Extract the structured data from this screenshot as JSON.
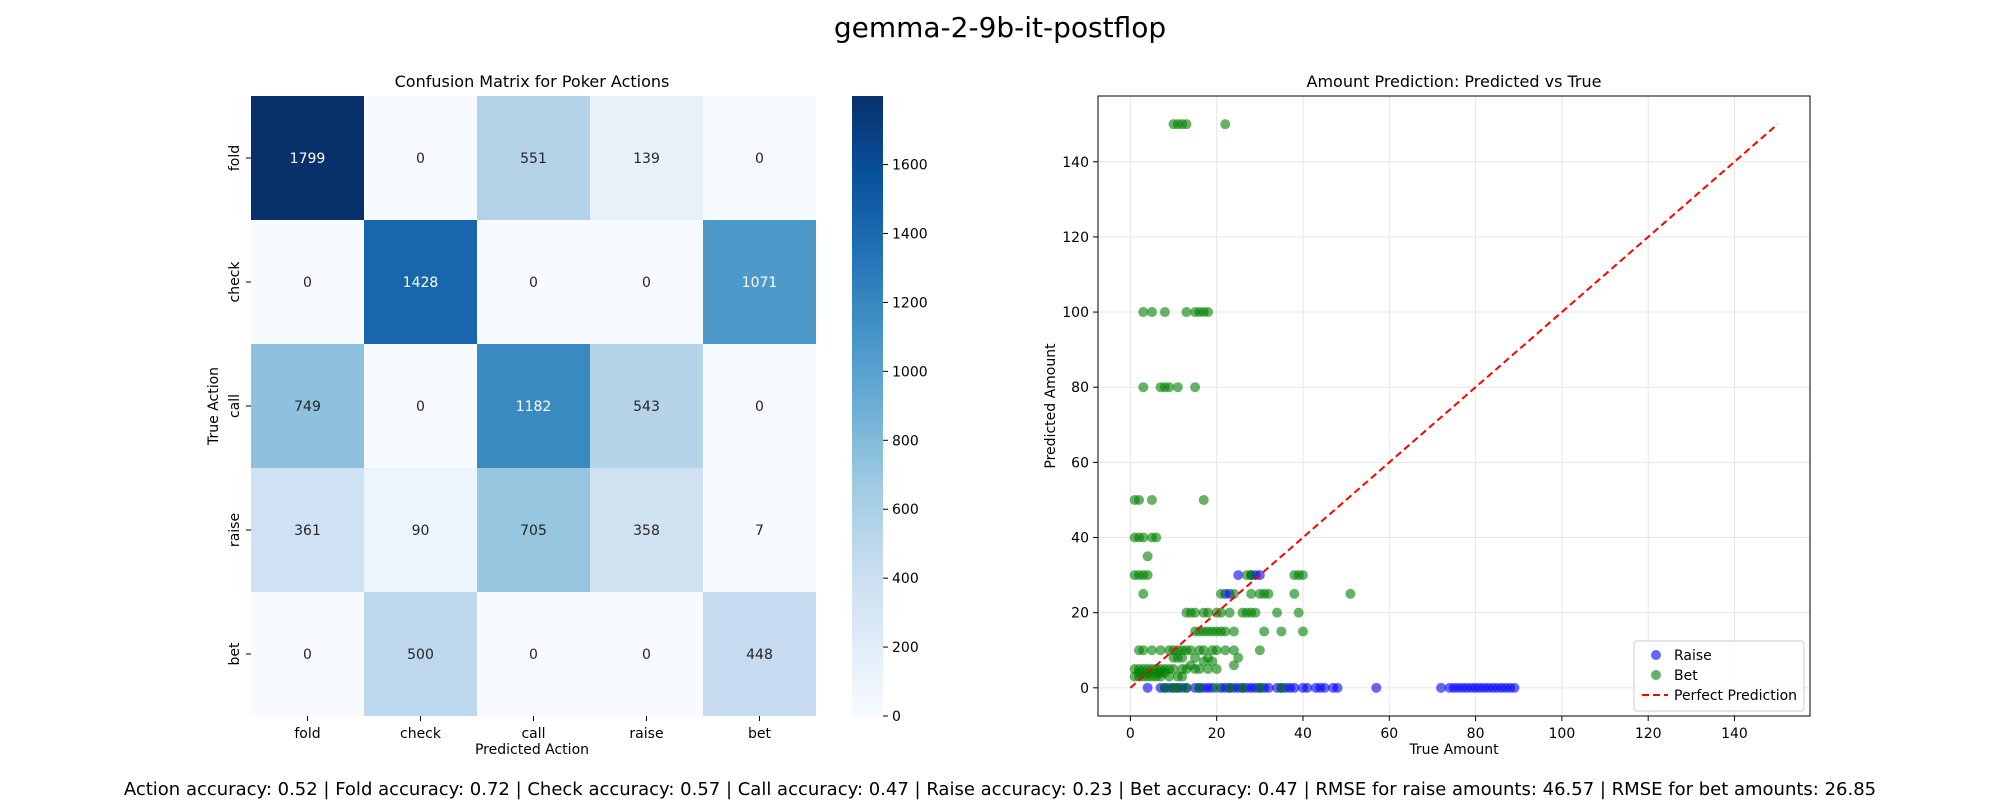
{
  "figure": {
    "suptitle": "gemma-2-9b-it-postflop",
    "footer": "Action accuracy: 0.52 | Fold accuracy: 0.72 | Check accuracy: 0.57 | Call accuracy: 0.47 | Raise accuracy: 0.23 | Bet accuracy: 0.47 | RMSE for raise amounts: 46.57 | RMSE for bet amounts: 26.85"
  },
  "chart_data": [
    {
      "type": "heatmap",
      "title": "Confusion Matrix for Poker Actions",
      "xlabel": "Predicted Action",
      "ylabel": "True Action",
      "x_categories": [
        "fold",
        "check",
        "call",
        "raise",
        "bet"
      ],
      "y_categories": [
        "fold",
        "check",
        "call",
        "raise",
        "bet"
      ],
      "values": [
        [
          1799,
          0,
          551,
          139,
          0
        ],
        [
          0,
          1428,
          0,
          0,
          1071
        ],
        [
          749,
          0,
          1182,
          543,
          0
        ],
        [
          361,
          90,
          705,
          358,
          7
        ],
        [
          0,
          500,
          0,
          0,
          448
        ]
      ],
      "colormap": "Blues",
      "colorbar": {
        "min": 0,
        "max": 1799,
        "ticks": [
          0,
          200,
          400,
          600,
          800,
          1000,
          1200,
          1400,
          1600
        ]
      }
    },
    {
      "type": "scatter",
      "title": "Amount Prediction: Predicted vs True",
      "xlabel": "True Amount",
      "ylabel": "Predicted Amount",
      "xlim": [
        -7.5,
        157.5
      ],
      "ylim": [
        -7.5,
        157.5
      ],
      "xticks": [
        0,
        20,
        40,
        60,
        80,
        100,
        120,
        140
      ],
      "yticks": [
        0,
        20,
        40,
        60,
        80,
        100,
        120,
        140
      ],
      "grid": true,
      "legend_position": "lower-right",
      "series": [
        {
          "name": "Raise",
          "color": "#0000ff",
          "points": [
            [
              4,
              0
            ],
            [
              7,
              0
            ],
            [
              8,
              0
            ],
            [
              9,
              0
            ],
            [
              10,
              0
            ],
            [
              11,
              0
            ],
            [
              12,
              0
            ],
            [
              13,
              0
            ],
            [
              15,
              0
            ],
            [
              16,
              0
            ],
            [
              17,
              0
            ],
            [
              18,
              0
            ],
            [
              19,
              0
            ],
            [
              21,
              0
            ],
            [
              22,
              0
            ],
            [
              23,
              0
            ],
            [
              24,
              0
            ],
            [
              25,
              0
            ],
            [
              26,
              0
            ],
            [
              27,
              0
            ],
            [
              28,
              0
            ],
            [
              29,
              0
            ],
            [
              30,
              0
            ],
            [
              31,
              0
            ],
            [
              32,
              0
            ],
            [
              34,
              0
            ],
            [
              35,
              0
            ],
            [
              36,
              0
            ],
            [
              37,
              0
            ],
            [
              38,
              0
            ],
            [
              40,
              0
            ],
            [
              41,
              0
            ],
            [
              43,
              0
            ],
            [
              44,
              0
            ],
            [
              45,
              0
            ],
            [
              47,
              0
            ],
            [
              48,
              0
            ],
            [
              57,
              0
            ],
            [
              72,
              0
            ],
            [
              74,
              0
            ],
            [
              75,
              0
            ],
            [
              76,
              0
            ],
            [
              77,
              0
            ],
            [
              78,
              0
            ],
            [
              79,
              0
            ],
            [
              80,
              0
            ],
            [
              81,
              0
            ],
            [
              82,
              0
            ],
            [
              83,
              0
            ],
            [
              84,
              0
            ],
            [
              85,
              0
            ],
            [
              86,
              0
            ],
            [
              87,
              0
            ],
            [
              88,
              0
            ],
            [
              89,
              0
            ],
            [
              22,
              25
            ],
            [
              23,
              25
            ],
            [
              25,
              30
            ],
            [
              28,
              30
            ],
            [
              29,
              30
            ],
            [
              30,
              30
            ]
          ]
        },
        {
          "name": "Bet",
          "color": "#008000",
          "points": [
            [
              10,
              150
            ],
            [
              11,
              150
            ],
            [
              12,
              150
            ],
            [
              13,
              150
            ],
            [
              22,
              150
            ],
            [
              3,
              100
            ],
            [
              5,
              100
            ],
            [
              8,
              100
            ],
            [
              13,
              100
            ],
            [
              15,
              100
            ],
            [
              16,
              100
            ],
            [
              17,
              100
            ],
            [
              18,
              100
            ],
            [
              3,
              80
            ],
            [
              7,
              80
            ],
            [
              8,
              80
            ],
            [
              9,
              80
            ],
            [
              11,
              80
            ],
            [
              15,
              80
            ],
            [
              17,
              50
            ],
            [
              1,
              50
            ],
            [
              2,
              50
            ],
            [
              5,
              50
            ],
            [
              1,
              40
            ],
            [
              2,
              40
            ],
            [
              3,
              40
            ],
            [
              5,
              40
            ],
            [
              6,
              40
            ],
            [
              1,
              30
            ],
            [
              2,
              30
            ],
            [
              3,
              30
            ],
            [
              4,
              30
            ],
            [
              4,
              35
            ],
            [
              3,
              25
            ],
            [
              27,
              30
            ],
            [
              28,
              30
            ],
            [
              38,
              30
            ],
            [
              39,
              30
            ],
            [
              40,
              30
            ],
            [
              21,
              25
            ],
            [
              24,
              25
            ],
            [
              28,
              25
            ],
            [
              30,
              25
            ],
            [
              31,
              25
            ],
            [
              32,
              25
            ],
            [
              38,
              25
            ],
            [
              51,
              25
            ],
            [
              13,
              20
            ],
            [
              14,
              20
            ],
            [
              15,
              20
            ],
            [
              17,
              20
            ],
            [
              18,
              20
            ],
            [
              20,
              20
            ],
            [
              21,
              20
            ],
            [
              23,
              20
            ],
            [
              26,
              20
            ],
            [
              27,
              20
            ],
            [
              28,
              20
            ],
            [
              29,
              20
            ],
            [
              34,
              20
            ],
            [
              39,
              20
            ],
            [
              15,
              15
            ],
            [
              16,
              15
            ],
            [
              17,
              15
            ],
            [
              18,
              15
            ],
            [
              19,
              15
            ],
            [
              20,
              15
            ],
            [
              21,
              15
            ],
            [
              22,
              15
            ],
            [
              24,
              15
            ],
            [
              31,
              15
            ],
            [
              35,
              15
            ],
            [
              40,
              15
            ],
            [
              2,
              10
            ],
            [
              3,
              10
            ],
            [
              5,
              10
            ],
            [
              7,
              10
            ],
            [
              9,
              10
            ],
            [
              10,
              10
            ],
            [
              11,
              10
            ],
            [
              12,
              10
            ],
            [
              13,
              10
            ],
            [
              14,
              10
            ],
            [
              16,
              10
            ],
            [
              17,
              10
            ],
            [
              19,
              10
            ],
            [
              20,
              10
            ],
            [
              22,
              10
            ],
            [
              24,
              10
            ],
            [
              30,
              10
            ],
            [
              1,
              5
            ],
            [
              2,
              5
            ],
            [
              3,
              5
            ],
            [
              4,
              5
            ],
            [
              5,
              5
            ],
            [
              6,
              5
            ],
            [
              7,
              5
            ],
            [
              8,
              5
            ],
            [
              9,
              5
            ],
            [
              10,
              5
            ],
            [
              12,
              5
            ],
            [
              13,
              5
            ],
            [
              15,
              5
            ],
            [
              16,
              5
            ],
            [
              18,
              5
            ],
            [
              20,
              5
            ],
            [
              1,
              3
            ],
            [
              2,
              3
            ],
            [
              3,
              3
            ],
            [
              4,
              3
            ],
            [
              5,
              3
            ],
            [
              6,
              3
            ],
            [
              7,
              3
            ],
            [
              9,
              3
            ],
            [
              11,
              3
            ],
            [
              12,
              3
            ],
            [
              24,
              6
            ],
            [
              25,
              8
            ],
            [
              2,
              4
            ],
            [
              4,
              4
            ],
            [
              6,
              4
            ],
            [
              7,
              4
            ],
            [
              8,
              4
            ],
            [
              10,
              8
            ],
            [
              11,
              8
            ],
            [
              12,
              8
            ],
            [
              14,
              6
            ],
            [
              15,
              8
            ],
            [
              17,
              7
            ],
            [
              18,
              8
            ],
            [
              19,
              7
            ],
            [
              8,
              0
            ],
            [
              10,
              0
            ],
            [
              11,
              0
            ],
            [
              13,
              0
            ],
            [
              16,
              0
            ],
            [
              20,
              0
            ],
            [
              23,
              0
            ],
            [
              26,
              0
            ],
            [
              30,
              0
            ],
            [
              35,
              0
            ]
          ]
        }
      ],
      "reference_line": {
        "name": "Perfect Prediction",
        "color": "#ff0000",
        "from": [
          0,
          0
        ],
        "to": [
          150,
          150
        ]
      }
    }
  ]
}
